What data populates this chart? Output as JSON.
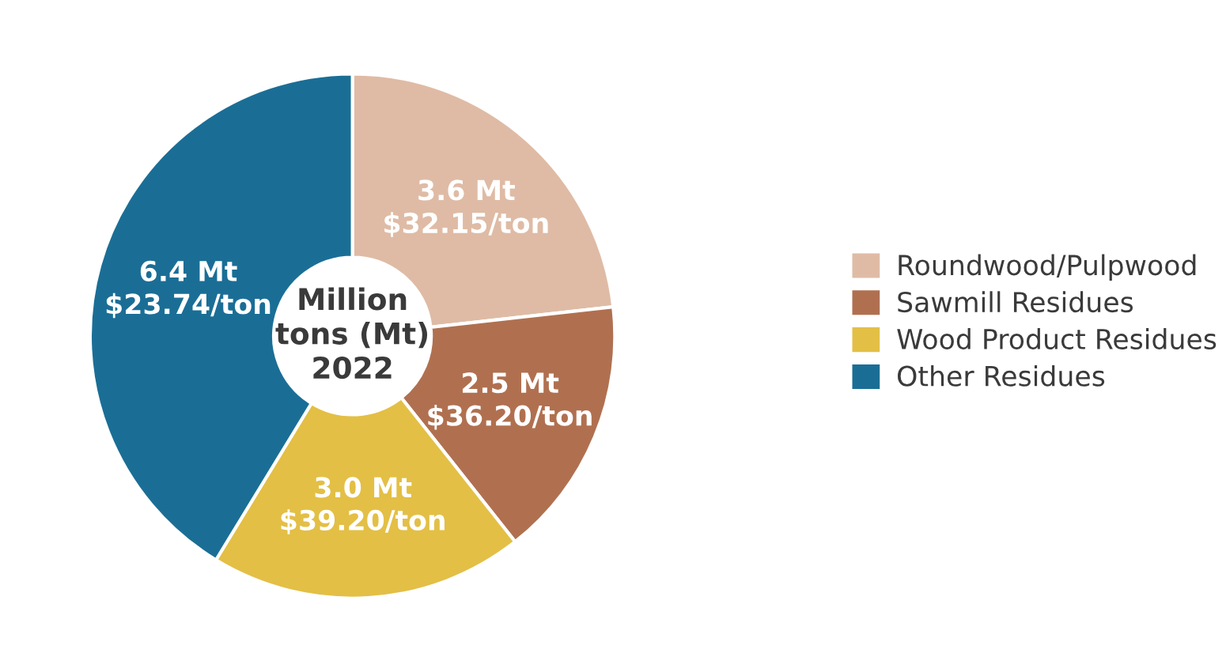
{
  "chart_data": {
    "type": "donut",
    "title": "Million\ntons (Mt)\n2022",
    "categories": [
      "Roundwood/Pulpwood",
      "Sawmill Residues",
      "Wood Product Residues",
      "Other Residues"
    ],
    "values": [
      3.6,
      2.5,
      3.0,
      6.4
    ],
    "colors": [
      "#dfbba5",
      "#b07050",
      "#e3bf45",
      "#1a6e96"
    ],
    "value_labels": [
      "3.6 Mt\n$32.15/ton",
      "2.5 Mt\n$36.20/ton",
      "3.0 Mt\n$39.20/ton",
      "6.4 Mt\n$23.74/ton"
    ],
    "legend": "right"
  }
}
